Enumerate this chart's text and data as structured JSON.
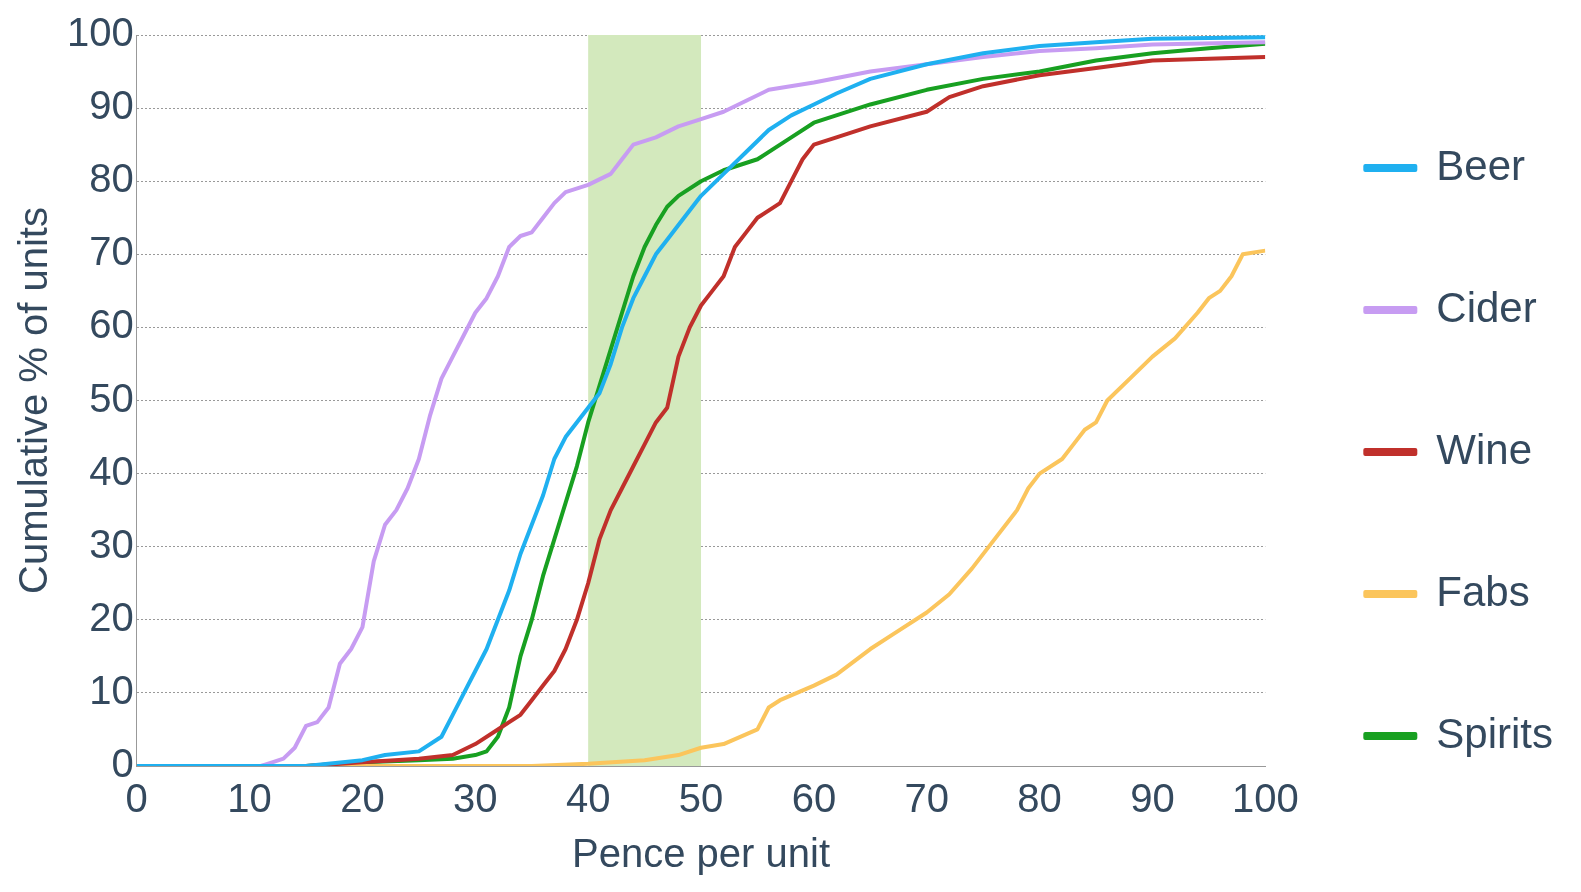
{
  "chart_data": {
    "type": "line",
    "xlabel": "Pence per unit",
    "ylabel": "Cumulative % of units",
    "xlim": [
      0,
      100
    ],
    "ylim": [
      0,
      100
    ],
    "xticks": [
      0,
      10,
      20,
      30,
      40,
      50,
      60,
      70,
      80,
      90,
      100
    ],
    "yticks": [
      0,
      10,
      20,
      30,
      40,
      50,
      60,
      70,
      80,
      90,
      100
    ],
    "grid": "y",
    "legend": "right",
    "marker": "none",
    "line_style": "solid",
    "bands": [
      {
        "axis": "x",
        "from": 40,
        "to": 50,
        "color": "#d3e9bd"
      }
    ],
    "series": [
      {
        "name": "Beer",
        "color": "#1fb0f0",
        "x": [
          0,
          15,
          20,
          22,
          25,
          27,
          28,
          29,
          30,
          31,
          32,
          33,
          34,
          35,
          36,
          37,
          38,
          40,
          41,
          42,
          43,
          44,
          45,
          46,
          47,
          48,
          50,
          52,
          54,
          56,
          58,
          60,
          62,
          65,
          70,
          75,
          80,
          85,
          90,
          100
        ],
        "values": [
          0,
          0,
          0.8,
          1.5,
          2,
          4,
          7,
          10,
          13,
          16,
          20,
          24,
          29,
          33,
          37,
          42,
          45,
          49,
          51,
          55,
          60,
          64,
          67,
          70,
          72,
          74,
          78,
          81,
          84,
          87,
          89,
          90.5,
          92,
          94,
          96,
          97.5,
          98.5,
          99,
          99.5,
          99.7
        ]
      },
      {
        "name": "Cider",
        "color": "#c79cf2",
        "x": [
          0,
          11,
          12,
          13,
          14,
          15,
          16,
          17,
          18,
          19,
          20,
          21,
          22,
          23,
          24,
          25,
          26,
          27,
          28,
          29,
          30,
          31,
          32,
          33,
          34,
          35,
          36,
          37,
          38,
          40,
          42,
          43,
          44,
          46,
          48,
          50,
          52,
          54,
          56,
          60,
          65,
          70,
          75,
          80,
          85,
          90,
          100
        ],
        "values": [
          0,
          0,
          0.5,
          1,
          2.5,
          5.5,
          6,
          8,
          14,
          16,
          19,
          28,
          33,
          35,
          38,
          42,
          48,
          53,
          56,
          59,
          62,
          64,
          67,
          71,
          72.5,
          73,
          75,
          77,
          78.5,
          79.5,
          81,
          83,
          85,
          86,
          87.5,
          88.5,
          89.5,
          91,
          92.5,
          93.5,
          95,
          96,
          97,
          97.8,
          98.2,
          98.7,
          99
        ]
      },
      {
        "name": "Wine",
        "color": "#c0302b",
        "x": [
          0,
          15,
          20,
          25,
          28,
          30,
          32,
          34,
          35,
          36,
          37,
          38,
          39,
          40,
          41,
          42,
          43,
          44,
          45,
          46,
          47,
          48,
          49,
          50,
          51,
          52,
          53,
          54,
          55,
          57,
          58,
          59,
          60,
          62,
          65,
          70,
          72,
          75,
          80,
          85,
          90,
          100
        ],
        "values": [
          0,
          0,
          0.5,
          1,
          1.5,
          3,
          5,
          7,
          9,
          11,
          13,
          16,
          20,
          25,
          31,
          35,
          38,
          41,
          44,
          47,
          49,
          56,
          60,
          63,
          65,
          67,
          71,
          73,
          75,
          77,
          80,
          83,
          85,
          86,
          87.5,
          89.5,
          91.5,
          93,
          94.5,
          95.5,
          96.5,
          97
        ]
      },
      {
        "name": "Fabs",
        "color": "#fbc55c",
        "x": [
          0,
          35,
          40,
          45,
          48,
          50,
          52,
          55,
          56,
          57,
          60,
          62,
          65,
          67,
          70,
          72,
          74,
          76,
          78,
          79,
          80,
          82,
          83,
          84,
          85,
          86,
          88,
          90,
          92,
          94,
          95,
          96,
          97,
          98,
          100
        ],
        "values": [
          0,
          0,
          0.3,
          0.8,
          1.5,
          2.5,
          3,
          5,
          8,
          9,
          11,
          12.5,
          16,
          18,
          21,
          23.5,
          27,
          31,
          35,
          38,
          40,
          42,
          44,
          46,
          47,
          50,
          53,
          56,
          58.5,
          62,
          64,
          65,
          67,
          70,
          70.5
        ]
      },
      {
        "name": "Spirits",
        "color": "#18a021",
        "x": [
          0,
          15,
          20,
          25,
          28,
          30,
          31,
          32,
          33,
          34,
          35,
          36,
          37,
          38,
          39,
          40,
          41,
          42,
          43,
          44,
          45,
          46,
          47,
          48,
          50,
          52,
          55,
          58,
          60,
          65,
          70,
          75,
          80,
          85,
          90,
          95,
          100
        ],
        "values": [
          0,
          0,
          0.5,
          0.8,
          1,
          1.5,
          2,
          4,
          8,
          15,
          20,
          26,
          31,
          36,
          41,
          47,
          52,
          57,
          62,
          67,
          71,
          74,
          76.5,
          78,
          80,
          81.5,
          83,
          86,
          88,
          90.5,
          92.5,
          94,
          95,
          96.5,
          97.5,
          98.2,
          98.8
        ]
      }
    ]
  }
}
